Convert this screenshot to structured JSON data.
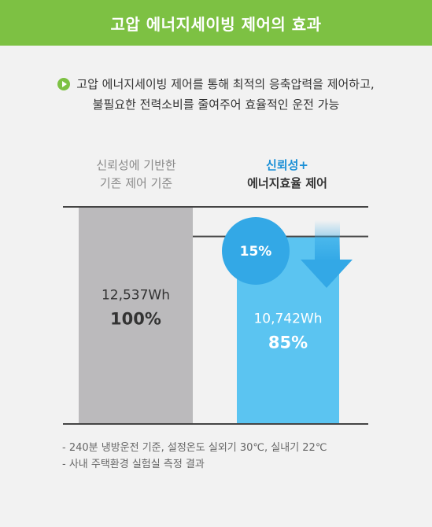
{
  "header": {
    "title": "고압 에너지세이빙 제어의 효과"
  },
  "description": {
    "line1": "고압 에너지세이빙 제어를 통해 최적의 응축압력을 제어하고,",
    "line2": "불필요한 전력소비를 줄여주어 효율적인 운전 가능"
  },
  "columns": {
    "left": {
      "line1": "신뢰성에 기반한",
      "line2": "기존 제어 기준"
    },
    "right": {
      "line1": "신뢰성+",
      "line2": "에너지효율 제어"
    }
  },
  "colors": {
    "header": "#7dc143",
    "left_bar": "#bbbabc",
    "right_bar": "#5bc4f1",
    "arrow": "#33a8e6",
    "badge": "#33a8e6",
    "accent_text": "#1a8fd6"
  },
  "badge": {
    "text": "15%",
    "icon": "down-arrow-icon"
  },
  "chart_data": {
    "type": "bar",
    "categories": [
      "신뢰성에 기반한 기존 제어 기준",
      "신뢰성+ 에너지효율 제어"
    ],
    "values": [
      12537,
      10742
    ],
    "unit": "Wh",
    "value_labels": [
      "12,537Wh",
      "10,742Wh"
    ],
    "percent_labels": [
      "100%",
      "85%"
    ],
    "percents": [
      100,
      85
    ],
    "reduction_label": "15%",
    "ylim": [
      0,
      12537
    ]
  },
  "notes": [
    "- 240분 냉방운전 기준, 설정온도 실외기 30℃, 실내기 22℃",
    "- 사내 주택환경 실험실 측정 결과"
  ]
}
